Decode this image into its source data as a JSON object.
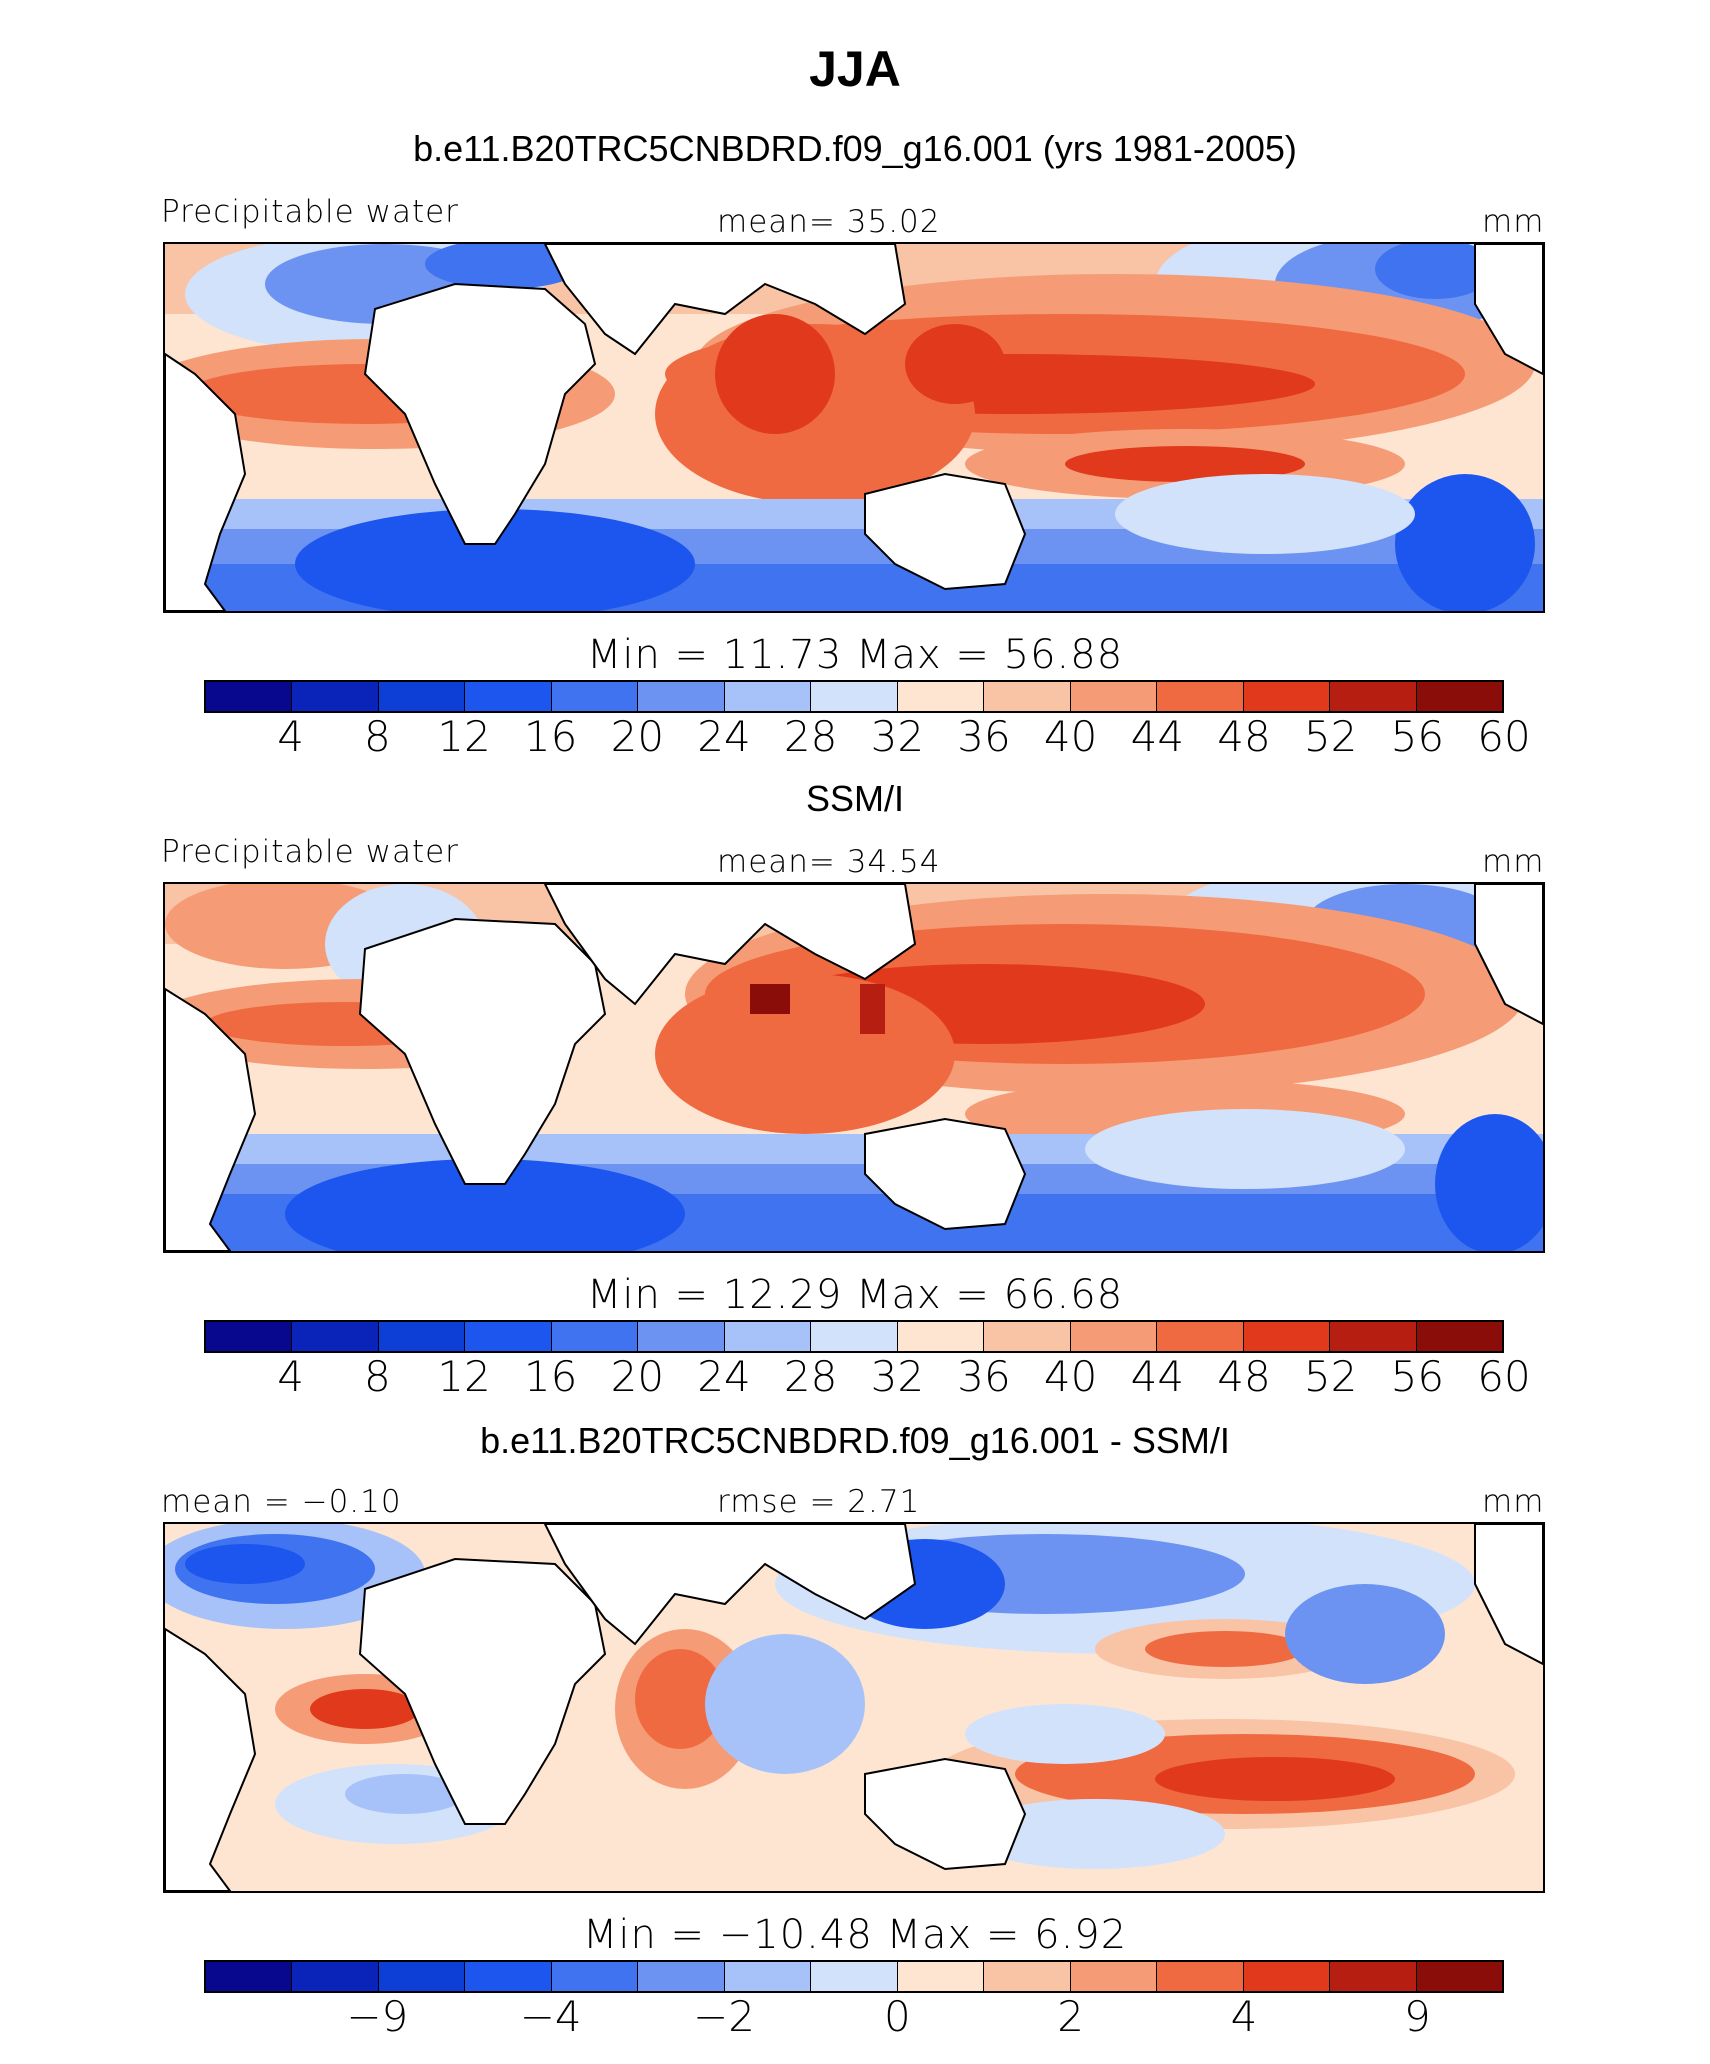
{
  "title": "JJA",
  "colorbar": {
    "colors": [
      "#08088f",
      "#0a23b8",
      "#0d3fd6",
      "#1c56ee",
      "#3f73ef",
      "#6c93f2",
      "#a7c2f8",
      "#d3e2fb",
      "#fde5d2",
      "#f9c3a5",
      "#f59c76",
      "#f06a41",
      "#e1391b",
      "#b51e10",
      "#8a0d0a"
    ],
    "abs_ticks": [
      "4",
      "8",
      "12",
      "16",
      "20",
      "24",
      "28",
      "32",
      "36",
      "40",
      "44",
      "48",
      "52",
      "56",
      "60"
    ],
    "diff_ticks": [
      {
        "slot": 2,
        "label": "−9"
      },
      {
        "slot": 4,
        "label": "−4"
      },
      {
        "slot": 6,
        "label": "−2"
      },
      {
        "slot": 8,
        "label": "0"
      },
      {
        "slot": 10,
        "label": "2"
      },
      {
        "slot": 12,
        "label": "4"
      },
      {
        "slot": 14,
        "label": "9"
      }
    ]
  },
  "panels": {
    "model": {
      "heading": "b.e11.B20TRC5CNBDRD.f09_g16.001 (yrs 1981-2005)",
      "left_label": "Precipitable water",
      "center_label": "mean=  35.02",
      "units": "mm",
      "minmax": "Min =   11.73  Max =   56.88"
    },
    "obs": {
      "heading": "SSM/I",
      "left_label": "Precipitable water",
      "center_label": "mean=  34.54",
      "units": "mm",
      "minmax": "Min =   12.29  Max =   66.68"
    },
    "diff": {
      "heading": "b.e11.B20TRC5CNBDRD.f09_g16.001 - SSM/I",
      "left_label": "mean =  −0.10",
      "center_label": "rmse =    2.71",
      "units": "mm",
      "minmax": "Min = −10.48  Max =    6.92"
    }
  },
  "chart_data": [
    {
      "type": "heatmap",
      "title": "b.e11.B20TRC5CNBDRD.f09_g16.001 (yrs 1981-2005)",
      "variable": "Precipitable water",
      "units": "mm",
      "mean": 35.02,
      "min": 11.73,
      "max": 56.88,
      "contour_levels": [
        4,
        8,
        12,
        16,
        20,
        24,
        28,
        32,
        36,
        40,
        44,
        48,
        52,
        56,
        60
      ]
    },
    {
      "type": "heatmap",
      "title": "SSM/I",
      "variable": "Precipitable water",
      "units": "mm",
      "mean": 34.54,
      "min": 12.29,
      "max": 66.68,
      "contour_levels": [
        4,
        8,
        12,
        16,
        20,
        24,
        28,
        32,
        36,
        40,
        44,
        48,
        52,
        56,
        60
      ]
    },
    {
      "type": "heatmap",
      "title": "b.e11.B20TRC5CNBDRD.f09_g16.001 - SSM/I",
      "units": "mm",
      "mean": -0.1,
      "rmse": 2.71,
      "min": -10.48,
      "max": 6.92,
      "contour_levels": [
        -9,
        -4,
        -2,
        0,
        2,
        4,
        9
      ]
    }
  ]
}
